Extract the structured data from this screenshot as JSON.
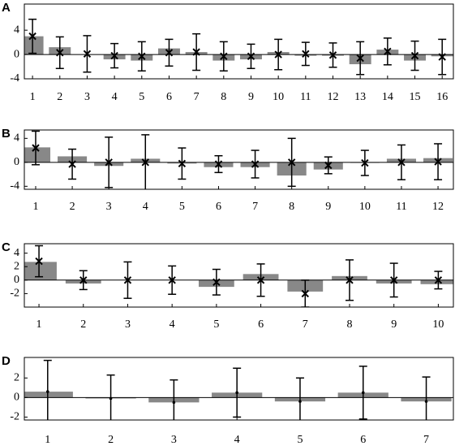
{
  "chart_data": [
    {
      "type": "bar",
      "label": "A",
      "color": "#888888",
      "marker": "x",
      "x": [
        1,
        2,
        3,
        4,
        5,
        6,
        7,
        8,
        9,
        10,
        11,
        12,
        13,
        14,
        15,
        16
      ],
      "values": [
        3.0,
        1.2,
        0,
        -0.8,
        -1.0,
        1.0,
        0.4,
        -1.0,
        -0.8,
        0.4,
        -0.2,
        -0.2,
        -1.6,
        0.8,
        -1.0,
        -0.3
      ],
      "markers": [
        3.0,
        0.3,
        0.1,
        -0.2,
        -0.3,
        0.3,
        0.4,
        -0.3,
        -0.3,
        0,
        0.1,
        -0.1,
        -0.6,
        0.5,
        -0.2,
        -0.4
      ],
      "errors": [
        2.8,
        2.6,
        3.0,
        2.0,
        2.4,
        2.2,
        3.0,
        2.4,
        2.0,
        2.5,
        1.9,
        2.0,
        2.7,
        2.2,
        2.4,
        2.9
      ],
      "xlim": [
        0.7,
        16.41
      ],
      "ylim": [
        -4.0,
        8.3
      ],
      "yticks": [
        -4,
        0,
        4
      ]
    },
    {
      "type": "bar",
      "label": "B",
      "color": "#888888",
      "marker": "x",
      "x": [
        1,
        2,
        3,
        4,
        5,
        6,
        7,
        8,
        9,
        10,
        11,
        12
      ],
      "values": [
        2.5,
        1.0,
        -0.6,
        0.6,
        -0.2,
        -0.8,
        -0.8,
        -2.2,
        -1.2,
        -0.1,
        0.6,
        0.7
      ],
      "markers": [
        2.4,
        -0.3,
        0,
        0,
        -0.2,
        -0.3,
        -0.3,
        0,
        -0.5,
        -0.1,
        0,
        0.1
      ],
      "errors": [
        2.8,
        2.5,
        4.2,
        4.6,
        2.6,
        1.4,
        2.3,
        4.0,
        1.4,
        2.1,
        2.9,
        3.0
      ],
      "xlim": [
        0.69,
        12.42
      ],
      "ylim": [
        -4.5,
        5.4
      ],
      "yticks": [
        -4,
        0,
        4
      ]
    },
    {
      "type": "bar",
      "label": "C",
      "color": "#888888",
      "marker": "x",
      "x": [
        1,
        2,
        3,
        4,
        5,
        6,
        7,
        8,
        9,
        10
      ],
      "values": [
        2.7,
        -0.5,
        0,
        0,
        -1.0,
        0.9,
        -1.7,
        0.6,
        -0.5,
        -0.6
      ],
      "markers": [
        2.8,
        0,
        0,
        0,
        -0.3,
        0,
        -2.0,
        0,
        0,
        0
      ],
      "errors": [
        2.3,
        1.4,
        2.7,
        2.1,
        1.9,
        2.4,
        2.0,
        3.0,
        2.5,
        1.3
      ],
      "xlim": [
        0.67,
        10.34
      ],
      "ylim": [
        -4.0,
        5.4
      ],
      "yticks": [
        -2,
        0,
        2,
        4
      ]
    },
    {
      "type": "bar",
      "label": "D",
      "color": "#888888",
      "marker": "dot",
      "x": [
        1,
        2,
        3,
        4,
        5,
        6,
        7
      ],
      "values": [
        0.6,
        -0.1,
        -0.5,
        0.5,
        -0.4,
        0.5,
        -0.4
      ],
      "markers": [
        0.6,
        -0.1,
        -0.5,
        0.5,
        -0.4,
        0.5,
        -0.4
      ],
      "errors": [
        3.2,
        2.4,
        2.3,
        2.5,
        2.4,
        2.7,
        2.5
      ],
      "xlim": [
        0.63,
        7.43
      ],
      "ylim": [
        -2.3,
        4.1
      ],
      "yticks": [
        -2,
        0,
        2
      ]
    }
  ]
}
